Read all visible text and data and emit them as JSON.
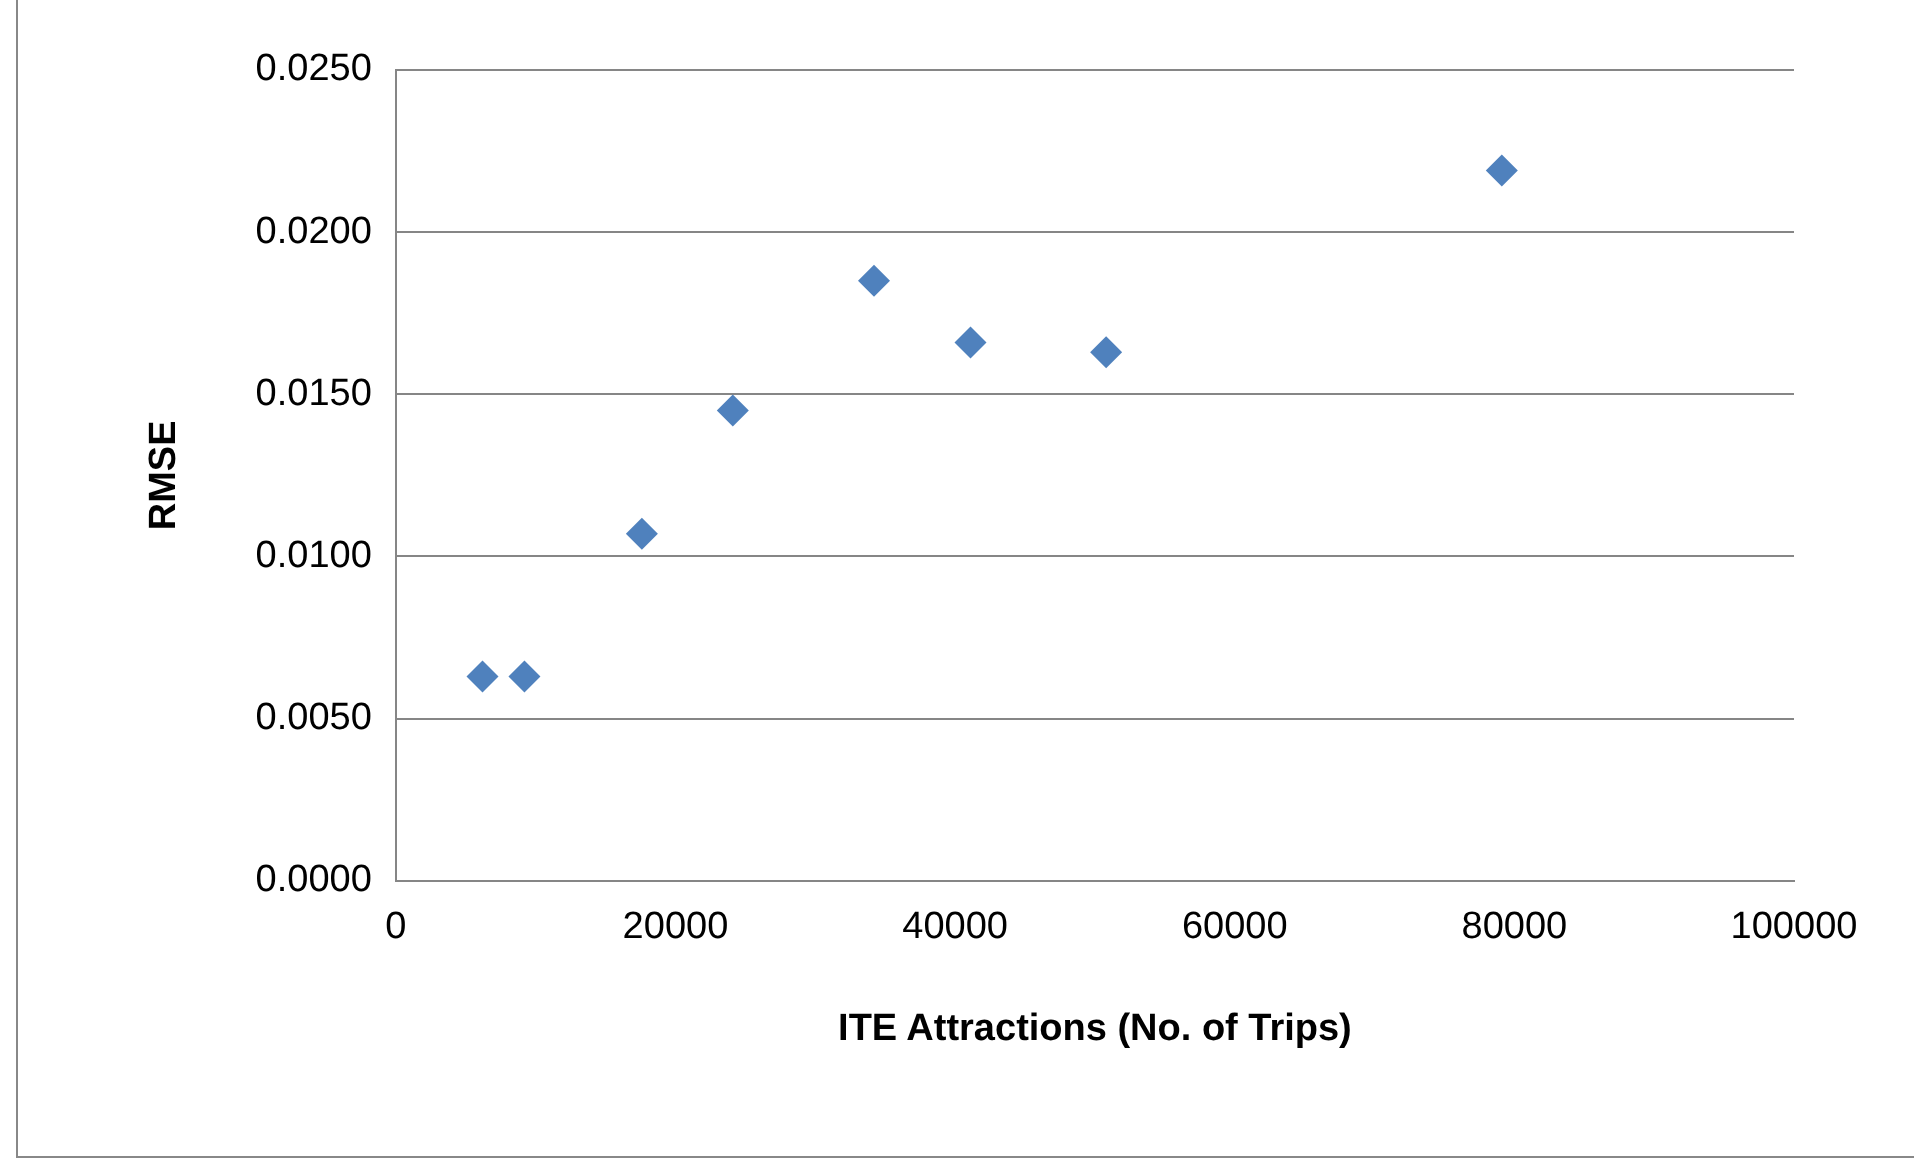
{
  "chart_data": {
    "type": "scatter",
    "xlabel": "ITE Attractions (No. of Trips)",
    "ylabel": "RMSE",
    "x": [
      6200,
      9200,
      17600,
      24100,
      34200,
      41100,
      50800,
      79100
    ],
    "series": [
      {
        "color": "#4f81bd",
        "values": [
          0.0063,
          0.0063,
          0.0107,
          0.0145,
          0.0185,
          0.0166,
          0.0163,
          0.0219
        ]
      }
    ],
    "xlim": [
      0,
      100000
    ],
    "xticks": [
      0,
      20000,
      40000,
      60000,
      80000,
      100000
    ],
    "ylim": [
      0,
      0.025
    ],
    "yticks": [
      {
        "value": 0,
        "label": "0.0000"
      },
      {
        "value": 0.005,
        "label": "0.0050"
      },
      {
        "value": 0.01,
        "label": "0.0100"
      },
      {
        "value": 0.015,
        "label": "0.0150"
      },
      {
        "value": 0.02,
        "label": "0.0200"
      },
      {
        "value": 0.025,
        "label": "0.0250"
      }
    ],
    "grid": "y",
    "legend": false,
    "marker": "diamond"
  }
}
